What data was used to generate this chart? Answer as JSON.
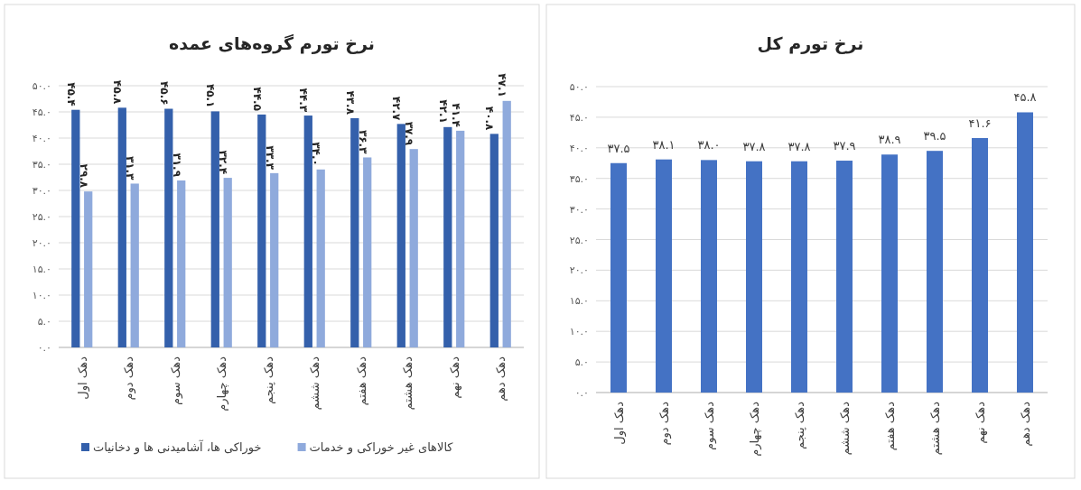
{
  "chart_data": [
    {
      "type": "bar",
      "title": "نرخ تورم گروه‌های عمده",
      "categories": [
        "دهک اول",
        "دهک دوم",
        "دهک سوم",
        "دهک چهارم",
        "دهک پنجم",
        "دهک ششم",
        "دهک هفتم",
        "دهک هشتم",
        "دهک نهم",
        "دهک دهم"
      ],
      "series": [
        {
          "name": "خوراکی ها، آشامیدنی ها و دخانیات",
          "color": "#3460ab",
          "values": [
            45.4,
            45.8,
            45.6,
            45.1,
            44.5,
            44.3,
            43.8,
            42.7,
            42.1,
            40.8
          ],
          "value_labels": [
            "۴۵.۴",
            "۴۵.۸",
            "۴۵.۶",
            "۴۵.۱",
            "۴۴.۵",
            "۴۴.۳",
            "۴۳.۸",
            "۴۲.۷",
            "۴۲.۱",
            "۴۰.۸"
          ]
        },
        {
          "name": "کالاهای غیر خوراکی و خدمات",
          "color": "#8faadc",
          "values": [
            29.8,
            31.3,
            31.9,
            32.4,
            33.3,
            34.0,
            36.3,
            37.9,
            41.4,
            47.1
          ],
          "value_labels": [
            "۲۹.۸",
            "۳۱.۳",
            "۳۱.۹",
            "۳۲.۴",
            "۳۳.۳",
            "۳۴.۰",
            "۳۶.۳",
            "۳۷.۹",
            "۴۱.۴",
            "۴۷.۱"
          ]
        }
      ],
      "ylim": [
        0,
        50
      ],
      "yticks": [
        {
          "value": 0,
          "label": "۰.۰"
        },
        {
          "value": 5,
          "label": "۵.۰"
        },
        {
          "value": 10,
          "label": "۱۰.۰"
        },
        {
          "value": 15,
          "label": "۱۵.۰"
        },
        {
          "value": 20,
          "label": "۲۰.۰"
        },
        {
          "value": 25,
          "label": "۲۵.۰"
        },
        {
          "value": 30,
          "label": "۳۰.۰"
        },
        {
          "value": 35,
          "label": "۳۵.۰"
        },
        {
          "value": 40,
          "label": "۴۰.۰"
        },
        {
          "value": 45,
          "label": "۴۵.۰"
        },
        {
          "value": 50,
          "label": "۵۰.۰"
        }
      ],
      "grid": "y",
      "legend": "bottom"
    },
    {
      "type": "bar",
      "title": "نرخ تورم کل",
      "categories": [
        "دهک اول",
        "دهک دوم",
        "دهک سوم",
        "دهک چهارم",
        "دهک پنجم",
        "دهک ششم",
        "دهک هفتم",
        "دهک هشتم",
        "دهک نهم",
        "دهک دهم"
      ],
      "series": [
        {
          "color": "#4472c4",
          "values": [
            37.5,
            38.1,
            38.0,
            37.8,
            37.8,
            37.9,
            38.9,
            39.5,
            41.6,
            45.8
          ],
          "value_labels": [
            "۳۷.۵",
            "۳۸.۱",
            "۳۸.۰",
            "۳۷.۸",
            "۳۷.۸",
            "۳۷.۹",
            "۳۸.۹",
            "۳۹.۵",
            "۴۱.۶",
            "۴۵.۸"
          ]
        }
      ],
      "ylim": [
        0,
        50
      ],
      "yticks": [
        {
          "value": 0,
          "label": "۰.۰"
        },
        {
          "value": 5,
          "label": "۵.۰"
        },
        {
          "value": 10,
          "label": "۱۰.۰"
        },
        {
          "value": 15,
          "label": "۱۵.۰"
        },
        {
          "value": 20,
          "label": "۲۰.۰"
        },
        {
          "value": 25,
          "label": "۲۵.۰"
        },
        {
          "value": 30,
          "label": "۳۰.۰"
        },
        {
          "value": 35,
          "label": "۳۵.۰"
        },
        {
          "value": 40,
          "label": "۴۰.۰"
        },
        {
          "value": 45,
          "label": "۴۵.۰"
        },
        {
          "value": 50,
          "label": "۵۰.۰"
        }
      ],
      "grid": "y"
    }
  ]
}
